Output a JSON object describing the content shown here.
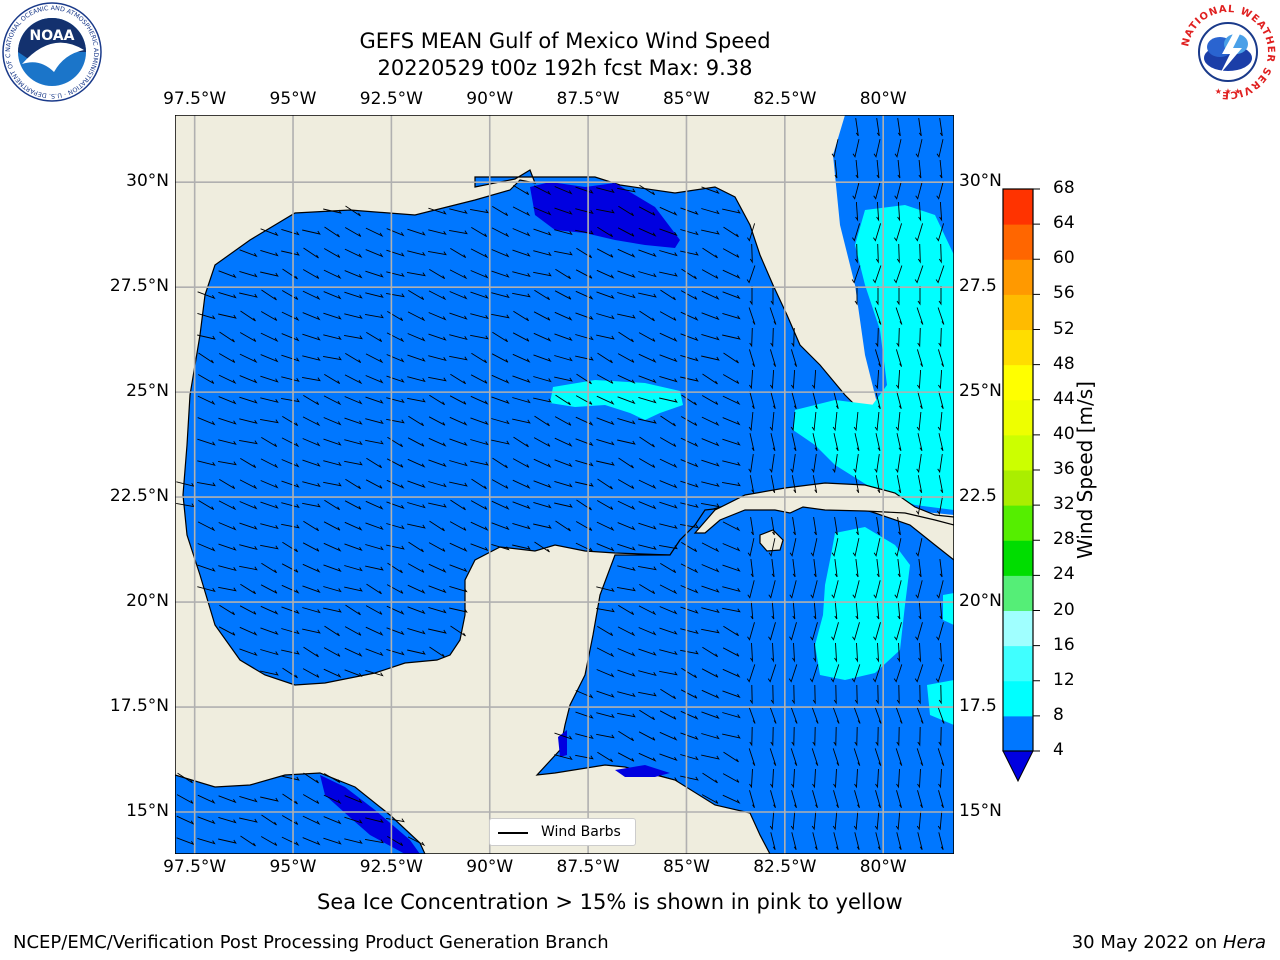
{
  "header": {
    "title_line1": "GEFS MEAN Gulf of Mexico Wind Speed",
    "title_line2": "20220529 t00z 192h fcst   Max: 9.38"
  },
  "logos": {
    "left_text": "NOAA",
    "left_ring": "NATIONAL OCEANIC AND ATMOSPHERIC ADMINISTRATION · U.S. DEPARTMENT OF COMMERCE",
    "right_ring": "NATIONAL WEATHER SERVICE"
  },
  "map": {
    "lon_ticks": [
      "97.5°W",
      "95°W",
      "92.5°W",
      "90°W",
      "87.5°W",
      "85°W",
      "82.5°W",
      "80°W"
    ],
    "lon_values": [
      -97.5,
      -95,
      -92.5,
      -90,
      -87.5,
      -85,
      -82.5,
      -80
    ],
    "lat_ticks_left": [
      "30°N",
      "27.5°N",
      "25°N",
      "22.5°N",
      "20°N",
      "17.5°N",
      "15°N"
    ],
    "lat_ticks_right": [
      "30°N",
      "27.5",
      "25°N",
      "22.5",
      "20°N",
      "17.5",
      "15°N"
    ],
    "lat_values": [
      30,
      27.5,
      25,
      22.5,
      20,
      17.5,
      15
    ],
    "extent": {
      "lon_min": -98,
      "lon_max": -78.2,
      "lat_min": 14,
      "lat_max": 31.6
    },
    "legend_label": "Wind Barbs",
    "colors": {
      "land": "#efedde",
      "ocean_4_8": "#0077ff",
      "ocean_8_12": "#00ffff",
      "ocean_lt4": "#0000e0",
      "grid": "#b0b0b0"
    }
  },
  "colorbar": {
    "label": "Wind Speed [m/s]",
    "levels": [
      "4",
      "8",
      "12",
      "16",
      "20",
      "24",
      "28",
      "32",
      "36",
      "40",
      "44",
      "48",
      "52",
      "56",
      "60",
      "64",
      "68"
    ],
    "colors": [
      "#0077ff",
      "#00ffff",
      "#40ffff",
      "#a0ffff",
      "#55ee77",
      "#00dd00",
      "#55ee00",
      "#aaee00",
      "#ccff00",
      "#eeff00",
      "#ffff00",
      "#ffdd00",
      "#ffbb00",
      "#ff9900",
      "#ff6600",
      "#ff3300",
      "#ff0000"
    ],
    "under_color": "#0000e0"
  },
  "footer": {
    "caption": "Sea Ice Concentration > 15% is shown in pink to yellow",
    "branch": "NCEP/EMC/Verification Post Processing Product Generation Branch",
    "date": "30 May 2022 on ",
    "machine": "Hera"
  }
}
